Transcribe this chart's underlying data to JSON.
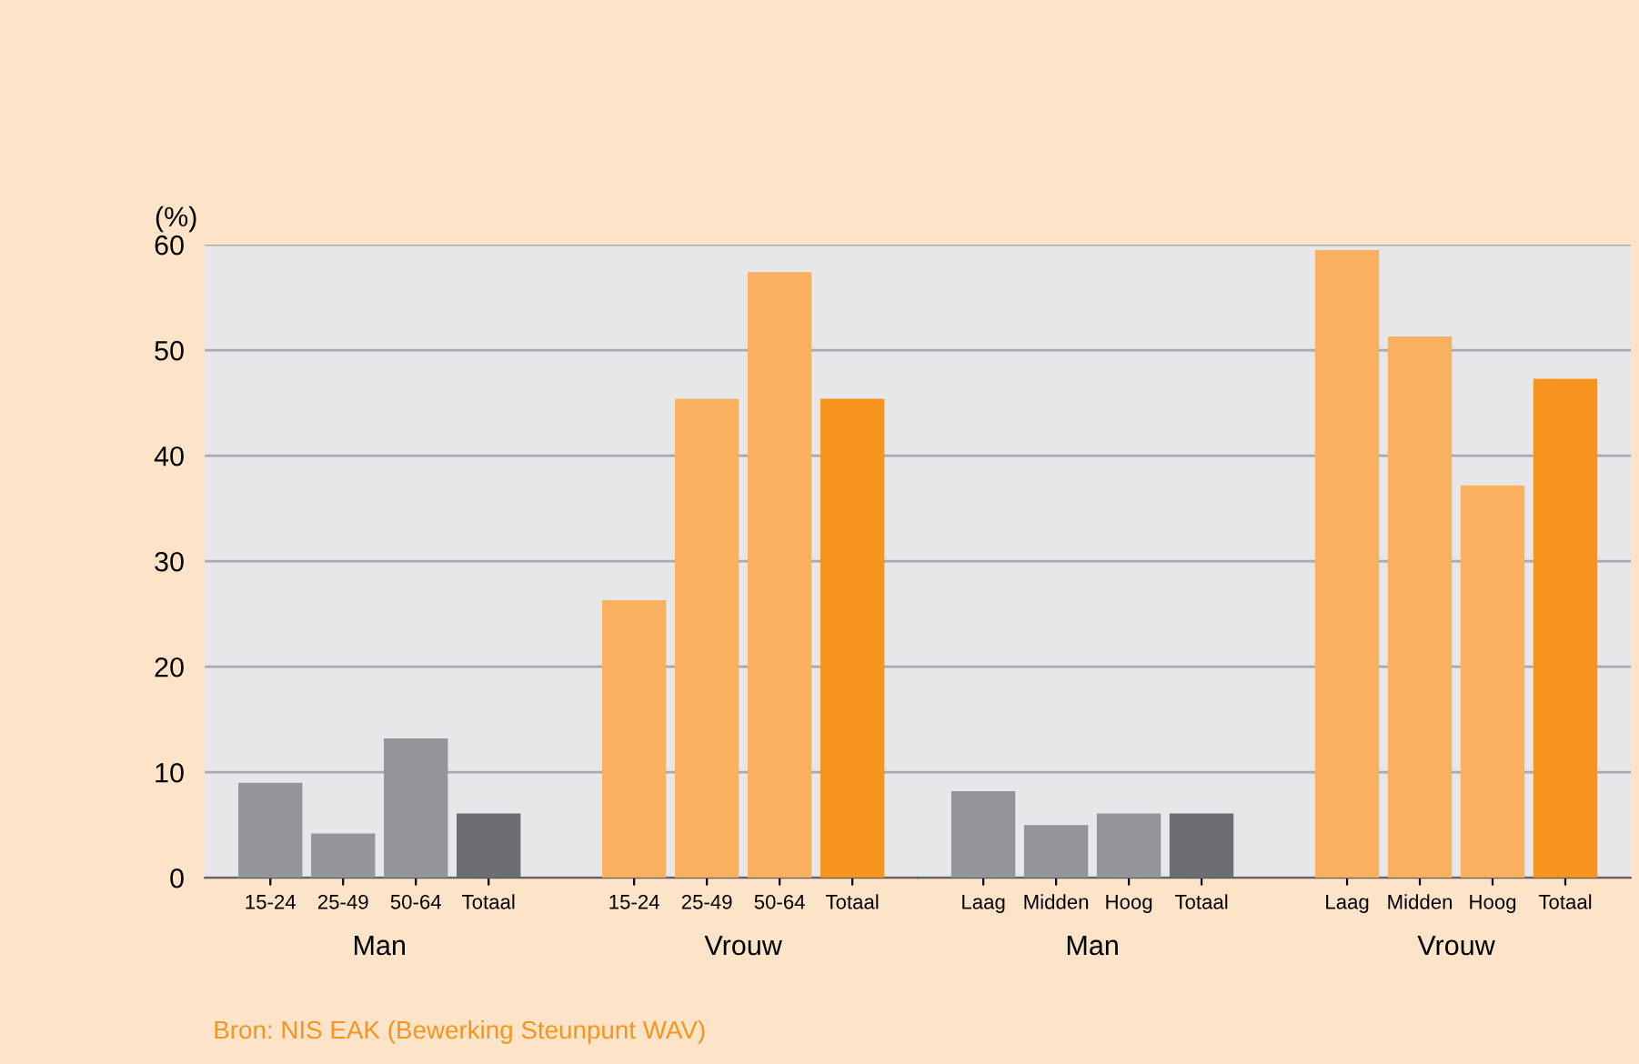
{
  "chart_data": [
    {
      "type": "bar",
      "ylabel": "(%)",
      "categories": [
        "15-24",
        "25-49",
        "50-64",
        "Totaal",
        null,
        "15-24",
        "25-49",
        "50-64",
        "Totaal"
      ],
      "values": [
        9,
        4.2,
        13.2,
        6.1,
        null,
        26.3,
        45.4,
        57.4,
        45.4
      ],
      "colors": [
        "#939598",
        "#939598",
        "#939598",
        "#6d6e71",
        "#939598",
        "#f9b160",
        "#f9b160",
        "#f9b160",
        "#f7941d"
      ],
      "ylim": [
        0,
        60
      ],
      "yticks": [
        0,
        10,
        20,
        30,
        40,
        50,
        60
      ],
      "grid": "y",
      "annotations": [
        "Man",
        "Vrouw",
        "Bron: NIS EAK (Bewerking Steunpunt WAV)"
      ]
    },
    {
      "type": "bar",
      "categories": [
        "Laag",
        "Midden",
        "Hoog",
        "Totaal",
        null,
        "Laag",
        "Midden",
        "Hoog",
        "Totaal"
      ],
      "values": [
        8.2,
        5.0,
        6.1,
        6.1,
        null,
        59.5,
        51.3,
        37.2,
        47.3
      ],
      "colors": [
        "#939598",
        "#939598",
        "#939598",
        "#6d6e71",
        "#939598",
        "#f9b160",
        "#f9b160",
        "#f9b160",
        "#f7941d"
      ],
      "ylim": [
        0,
        60
      ],
      "yticks": [
        0,
        10,
        20,
        30,
        40,
        50,
        60
      ],
      "grid": "y",
      "tick_labels": "x",
      "annotations": [
        "Man",
        "Vrouw"
      ]
    }
  ]
}
